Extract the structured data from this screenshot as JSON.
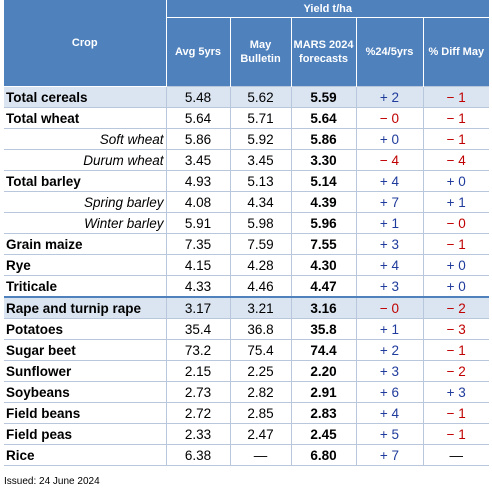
{
  "header": {
    "crop": "Crop",
    "yield_group": "Yield t/ha",
    "columns": [
      "Avg 5yrs",
      "May Bulletin",
      "MARS 2024 forecasts",
      "%24/5yrs",
      "% Diff May"
    ]
  },
  "rows": [
    {
      "crop": "Total cereals",
      "avg": "5.48",
      "may": "5.62",
      "mars": "5.59",
      "pct5": "+ 2",
      "pctmay": "− 1"
    },
    {
      "crop": "Total wheat",
      "avg": "5.64",
      "may": "5.71",
      "mars": "5.64",
      "pct5": "− 0",
      "pctmay": "− 1"
    },
    {
      "crop": "Soft wheat",
      "avg": "5.86",
      "may": "5.92",
      "mars": "5.86",
      "pct5": "+ 0",
      "pctmay": "− 1"
    },
    {
      "crop": "Durum wheat",
      "avg": "3.45",
      "may": "3.45",
      "mars": "3.30",
      "pct5": "− 4",
      "pctmay": "− 4"
    },
    {
      "crop": "Total barley",
      "avg": "4.93",
      "may": "5.13",
      "mars": "5.14",
      "pct5": "+ 4",
      "pctmay": "+ 0"
    },
    {
      "crop": "Spring barley",
      "avg": "4.08",
      "may": "4.34",
      "mars": "4.39",
      "pct5": "+ 7",
      "pctmay": "+ 1"
    },
    {
      "crop": "Winter barley",
      "avg": "5.91",
      "may": "5.98",
      "mars": "5.96",
      "pct5": "+ 1",
      "pctmay": "− 0"
    },
    {
      "crop": "Grain maize",
      "avg": "7.35",
      "may": "7.59",
      "mars": "7.55",
      "pct5": "+ 3",
      "pctmay": "− 1"
    },
    {
      "crop": "Rye",
      "avg": "4.15",
      "may": "4.28",
      "mars": "4.30",
      "pct5": "+ 4",
      "pctmay": "+ 0"
    },
    {
      "crop": "Triticale",
      "avg": "4.33",
      "may": "4.46",
      "mars": "4.47",
      "pct5": "+ 3",
      "pctmay": "+ 0"
    },
    {
      "crop": "Rape and turnip rape",
      "avg": "3.17",
      "may": "3.21",
      "mars": "3.16",
      "pct5": "− 0",
      "pctmay": "− 2"
    },
    {
      "crop": "Potatoes",
      "avg": "35.4",
      "may": "36.8",
      "mars": "35.8",
      "pct5": "+ 1",
      "pctmay": "− 3"
    },
    {
      "crop": "Sugar beet",
      "avg": "73.2",
      "may": "75.4",
      "mars": "74.4",
      "pct5": "+ 2",
      "pctmay": "− 1"
    },
    {
      "crop": "Sunflower",
      "avg": "2.15",
      "may": "2.25",
      "mars": "2.20",
      "pct5": "+ 3",
      "pctmay": "− 2"
    },
    {
      "crop": "Soybeans",
      "avg": "2.73",
      "may": "2.82",
      "mars": "2.91",
      "pct5": "+ 6",
      "pctmay": "+ 3"
    },
    {
      "crop": "Field beans",
      "avg": "2.72",
      "may": "2.85",
      "mars": "2.83",
      "pct5": "+ 4",
      "pctmay": "− 1"
    },
    {
      "crop": "Field peas",
      "avg": "2.33",
      "may": "2.47",
      "mars": "2.45",
      "pct5": "+ 5",
      "pctmay": "− 1"
    },
    {
      "crop": "Rice",
      "avg": "6.38",
      "may": "—",
      "mars": "6.80",
      "pct5": "+ 7",
      "pctmay": "—"
    }
  ],
  "footer": {
    "issued": "Issued: 24 June 2024"
  },
  "colors": {
    "header_bg": "#4f81bd",
    "shaded_row": "#dbe5f1",
    "positive": "#1f3b9b",
    "negative": "#c00000"
  }
}
